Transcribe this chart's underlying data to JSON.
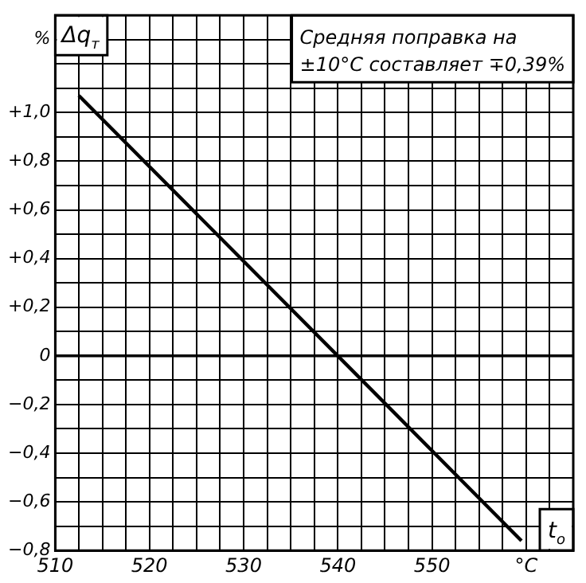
{
  "chart_data": {
    "type": "line",
    "xlabel": "t$_{o}$",
    "ylabel": "Δq$_{т}$",
    "annotations": [
      "Средняя поправка на ±10°C составляет ∓0,39%"
    ],
    "x": [
      512.5,
      540,
      559.5
    ],
    "series": [
      {
        "color": "#000000",
        "values": [
          1.07,
          0,
          -0.76
        ]
      }
    ],
    "xlim": [
      510,
      565
    ],
    "xticks": [
      510,
      {
        "value": 512.5,
        "label": null
      },
      {
        "value": 515,
        "label": null
      },
      {
        "value": 517.5,
        "label": null
      },
      520,
      {
        "value": 522.5,
        "label": null
      },
      {
        "value": 525,
        "label": null
      },
      {
        "value": 527.5,
        "label": null
      },
      530,
      {
        "value": 532.5,
        "label": null
      },
      {
        "value": 535,
        "label": null
      },
      {
        "value": 537.5,
        "label": null
      },
      540,
      {
        "value": 542.5,
        "label": null
      },
      {
        "value": 545,
        "label": null
      },
      {
        "value": 547.5,
        "label": null
      },
      550,
      {
        "value": 552.5,
        "label": null
      },
      {
        "value": 555,
        "label": null
      },
      {
        "value": 557.5,
        "label": null
      },
      {
        "value": 560,
        "label": "°C"
      },
      {
        "value": 562.5,
        "label": null
      }
    ],
    "ylim": [
      -0.8,
      1.4
    ],
    "yticks": [
      {
        "value": -0.8,
        "label": "−0,8"
      },
      {
        "value": -0.7,
        "label": null
      },
      {
        "value": -0.6,
        "label": "−0,6"
      },
      {
        "value": -0.5,
        "label": null
      },
      {
        "value": -0.4,
        "label": "−0,4"
      },
      {
        "value": -0.3,
        "label": null
      },
      {
        "value": -0.2,
        "label": "−0,2"
      },
      {
        "value": -0.1,
        "label": null
      },
      0,
      {
        "value": 0.1,
        "label": null
      },
      {
        "value": 0.2,
        "label": "+0,2"
      },
      {
        "value": 0.3,
        "label": null
      },
      {
        "value": 0.4,
        "label": "+0,4"
      },
      {
        "value": 0.5,
        "label": null
      },
      {
        "value": 0.6,
        "label": "+0,6"
      },
      {
        "value": 0.7,
        "label": null
      },
      {
        "value": 0.8,
        "label": "+0,8"
      },
      {
        "value": 0.9,
        "label": null
      },
      {
        "value": 1.0,
        "label": "+1,0"
      },
      {
        "value": 1.1,
        "label": null
      },
      {
        "value": 1.2,
        "label": null
      },
      {
        "value": 1.3,
        "label": "%"
      },
      {
        "value": 1.4,
        "label": null
      }
    ],
    "grid": true,
    "legend": false,
    "marker": "none",
    "line_style": "solid"
  }
}
